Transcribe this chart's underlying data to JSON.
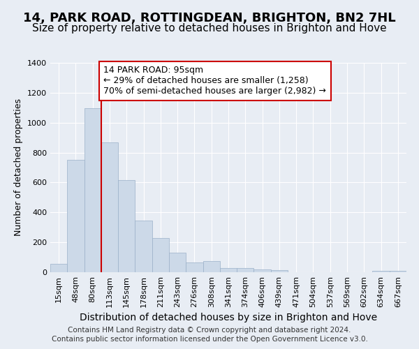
{
  "title1": "14, PARK ROAD, ROTTINGDEAN, BRIGHTON, BN2 7HL",
  "title2": "Size of property relative to detached houses in Brighton and Hove",
  "xlabel": "Distribution of detached houses by size in Brighton and Hove",
  "ylabel": "Number of detached properties",
  "footnote1": "Contains HM Land Registry data © Crown copyright and database right 2024.",
  "footnote2": "Contains public sector information licensed under the Open Government Licence v3.0.",
  "annotation_line1": "14 PARK ROAD: 95sqm",
  "annotation_line2": "← 29% of detached houses are smaller (1,258)",
  "annotation_line3": "70% of semi-detached houses are larger (2,982) →",
  "bar_categories": [
    "15sqm",
    "48sqm",
    "80sqm",
    "113sqm",
    "145sqm",
    "178sqm",
    "211sqm",
    "243sqm",
    "276sqm",
    "308sqm",
    "341sqm",
    "374sqm",
    "406sqm",
    "439sqm",
    "471sqm",
    "504sqm",
    "537sqm",
    "569sqm",
    "602sqm",
    "634sqm",
    "667sqm"
  ],
  "bar_values": [
    55,
    750,
    1095,
    870,
    615,
    345,
    228,
    133,
    65,
    75,
    30,
    30,
    20,
    15,
    0,
    0,
    0,
    0,
    0,
    8,
    10
  ],
  "bar_color": "#ccd9e8",
  "bar_edge_color": "#9ab0c8",
  "vline_color": "#cc0000",
  "vline_x_index": 2,
  "ylim": [
    0,
    1400
  ],
  "background_color": "#e8edf4",
  "grid_color": "#ffffff",
  "annotation_box_facecolor": "#ffffff",
  "annotation_box_edgecolor": "#cc0000",
  "title1_fontsize": 13,
  "title2_fontsize": 11,
  "xlabel_fontsize": 10,
  "ylabel_fontsize": 9,
  "annotation_fontsize": 9,
  "tick_fontsize": 8,
  "footnote_fontsize": 7.5
}
